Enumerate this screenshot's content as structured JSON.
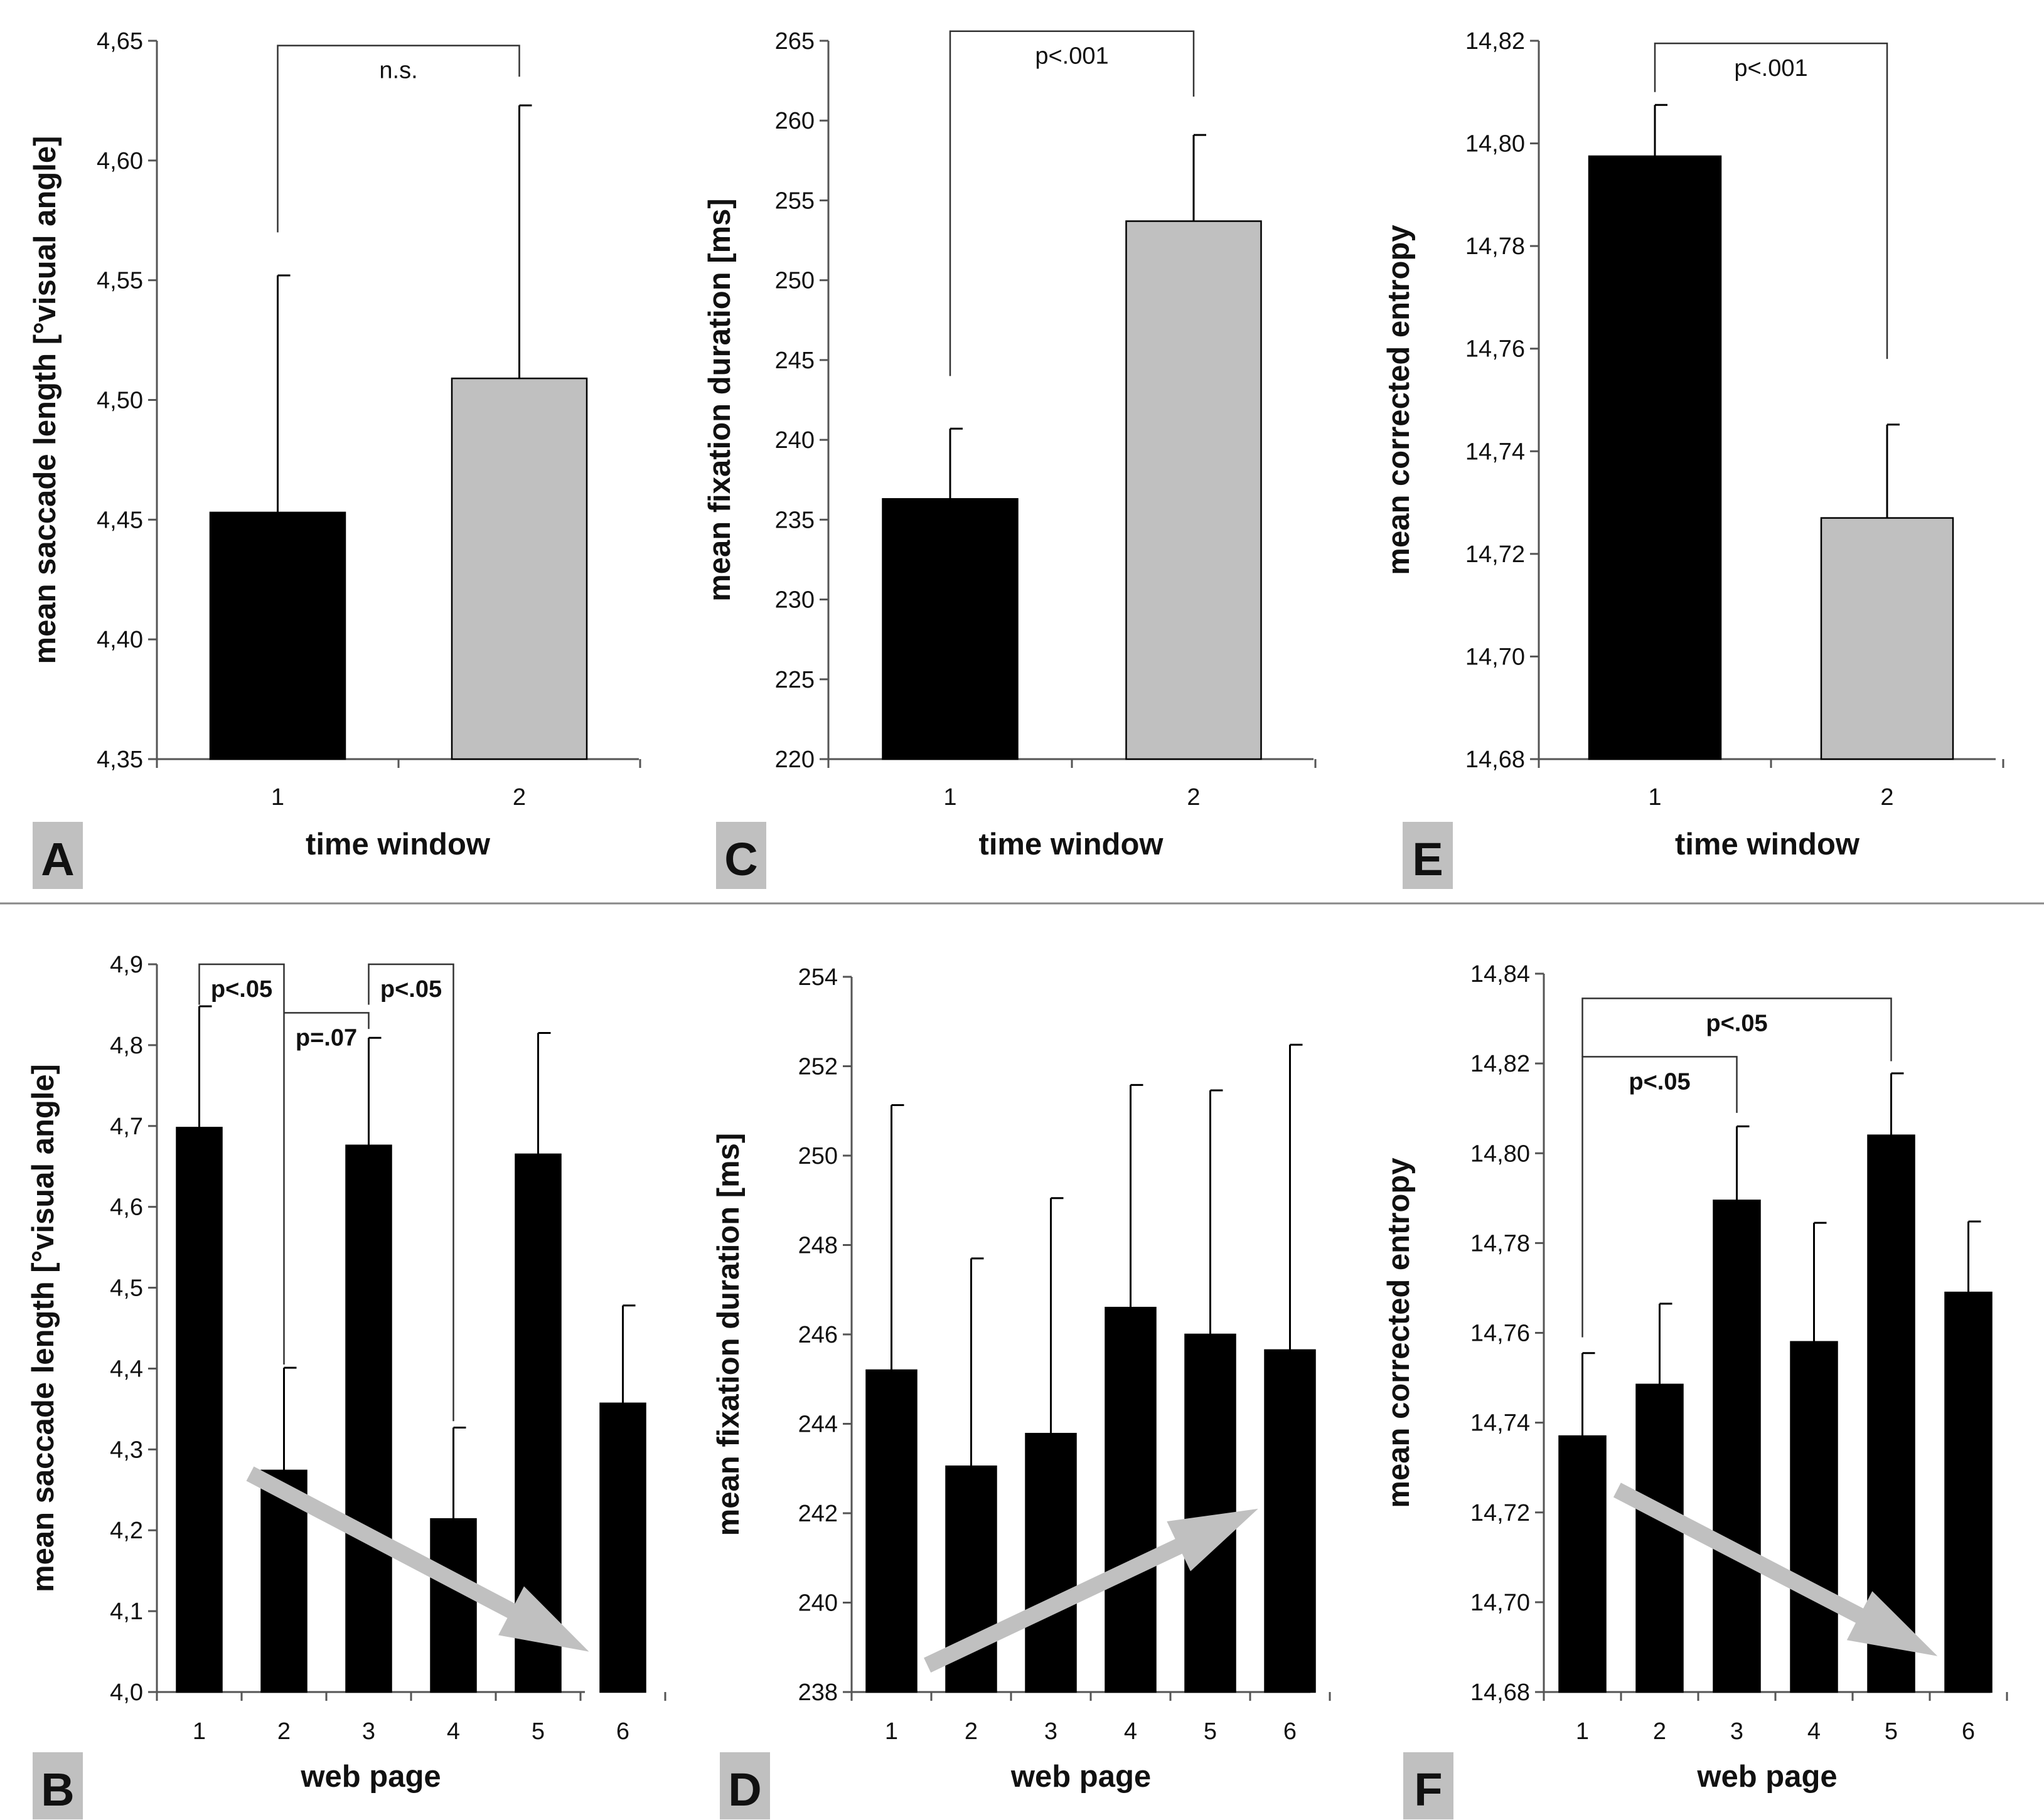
{
  "separator": true,
  "colors": {
    "black_bar": "#000000",
    "gray_bar": "#c0c0c0",
    "axis": "#555555",
    "arrow": "#c0c0c0",
    "letter_box": "#c0c0c0"
  },
  "chart_data": [
    {
      "panel": "A",
      "type": "bar",
      "xlabel": "time window",
      "ylabel": "mean saccade length [°visual angle]",
      "categories": [
        "1",
        "2"
      ],
      "values": [
        4.453,
        4.509
      ],
      "errors": [
        0.099,
        0.114
      ],
      "bar_colors": [
        "black",
        "gray"
      ],
      "ylim": [
        4.35,
        4.65
      ],
      "ystep": 0.05,
      "decimals": 2,
      "significance": [
        {
          "from": 1,
          "to": 2,
          "label": "n.s.",
          "bold": false,
          "left_y": 4.57,
          "right_y": 4.635,
          "top_y": 4.648
        }
      ]
    },
    {
      "panel": "C",
      "type": "bar",
      "xlabel": "time window",
      "ylabel": "mean fixation duration [ms]",
      "categories": [
        "1",
        "2"
      ],
      "values": [
        236.3,
        253.7
      ],
      "errors": [
        4.4,
        5.4
      ],
      "bar_colors": [
        "black",
        "gray"
      ],
      "ylim": [
        220,
        265
      ],
      "ystep": 5,
      "decimals": 0,
      "significance": [
        {
          "from": 1,
          "to": 2,
          "label": "p<.001",
          "bold": false,
          "left_y": 244,
          "right_y": 261.5,
          "top_y": 265.6
        }
      ]
    },
    {
      "panel": "E",
      "type": "bar",
      "xlabel": "time window",
      "ylabel": "mean corrected entropy",
      "categories": [
        "1",
        "2"
      ],
      "values": [
        14.7975,
        14.727
      ],
      "errors": [
        0.01,
        0.0182
      ],
      "bar_colors": [
        "black",
        "gray"
      ],
      "ylim": [
        14.68,
        14.82
      ],
      "ystep": 0.02,
      "decimals": 2,
      "significance": [
        {
          "from": 1,
          "to": 2,
          "label": "p<.001",
          "bold": false,
          "left_y": 14.81,
          "right_y": 14.758,
          "top_y": 14.8195
        }
      ]
    },
    {
      "panel": "B",
      "type": "bar",
      "xlabel": "web page",
      "ylabel": "mean saccade length [°visual angle]",
      "categories": [
        "1",
        "2",
        "3",
        "4",
        "5",
        "6"
      ],
      "values": [
        4.698,
        4.274,
        4.676,
        4.214,
        4.665,
        4.357
      ],
      "errors": [
        0.15,
        0.127,
        0.133,
        0.113,
        0.15,
        0.121
      ],
      "bar_colors": [
        "black",
        "black",
        "black",
        "black",
        "black",
        "black"
      ],
      "ylim": [
        4.0,
        4.9
      ],
      "ystep": 0.1,
      "decimals": 1,
      "significance": [
        {
          "from": 1,
          "to": 2,
          "label": "p<.05",
          "bold": true,
          "left_y": 4.85,
          "right_y": 4.405,
          "top_y": 4.9
        },
        {
          "from": 2,
          "to": 3,
          "label": "p=.07",
          "bold": true,
          "left_y": 4.84,
          "right_y": 4.82,
          "top_y": 4.84
        },
        {
          "from": 3,
          "to": 4,
          "label": "p<.05",
          "bold": true,
          "left_y": 4.85,
          "right_y": 4.335,
          "top_y": 4.9
        }
      ],
      "trend_arrow": {
        "from": [
          1.6,
          4.27
        ],
        "to": [
          5.6,
          4.05
        ]
      }
    },
    {
      "panel": "D",
      "type": "bar",
      "xlabel": "web page",
      "ylabel": "mean fixation duration [ms]",
      "categories": [
        "1",
        "2",
        "3",
        "4",
        "5",
        "6"
      ],
      "values": [
        245.2,
        243.05,
        243.78,
        246.6,
        246.0,
        245.65
      ],
      "errors": [
        5.93,
        4.65,
        5.27,
        4.98,
        5.46,
        6.83
      ],
      "bar_colors": [
        "black",
        "black",
        "black",
        "black",
        "black",
        "black"
      ],
      "ylim": [
        238,
        254
      ],
      "ystep": 2,
      "decimals": 0,
      "significance": [],
      "trend_arrow": {
        "from": [
          1.45,
          238.6
        ],
        "to": [
          5.6,
          242.1
        ]
      }
    },
    {
      "panel": "F",
      "type": "bar",
      "xlabel": "web page",
      "ylabel": "mean corrected entropy",
      "categories": [
        "1",
        "2",
        "3",
        "4",
        "5",
        "6"
      ],
      "values": [
        14.737,
        14.7485,
        14.7895,
        14.758,
        14.804,
        14.769
      ],
      "errors": [
        0.0185,
        0.018,
        0.0165,
        0.0265,
        0.0138,
        0.0158
      ],
      "bar_colors": [
        "black",
        "black",
        "black",
        "black",
        "black",
        "black"
      ],
      "ylim": [
        14.68,
        14.84
      ],
      "ystep": 0.02,
      "decimals": 2,
      "significance": [
        {
          "from": 1,
          "to": 3,
          "label": "p<.05",
          "bold": true,
          "left_y": 14.759,
          "right_y": 14.809,
          "top_y": 14.8215
        },
        {
          "from": 1,
          "to": 5,
          "label": "p<.05",
          "bold": true,
          "left_y": 14.8215,
          "right_y": 14.8205,
          "top_y": 14.8345
        }
      ],
      "trend_arrow": {
        "from": [
          1.45,
          14.725
        ],
        "to": [
          5.6,
          14.688
        ]
      }
    }
  ]
}
